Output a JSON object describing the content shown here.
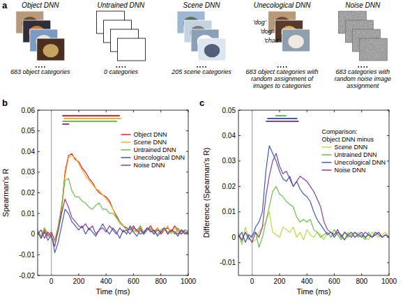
{
  "diagram": {
    "label": "a",
    "columns": [
      {
        "title": "Object DNN",
        "caption": "683 object categories"
      },
      {
        "title": "Untrained DNN",
        "caption": "0 categories"
      },
      {
        "title": "Scene DNN",
        "caption": "205 scene categories"
      },
      {
        "title": "Unecological DNN",
        "caption": "683 object categories with random assignment of images to categories",
        "image_labels": [
          "'dog'",
          "'dog'",
          "'chair'"
        ]
      },
      {
        "title": "Noise DNN",
        "caption": "683 categories with random noise image assignment"
      }
    ]
  },
  "chart_data": [
    {
      "type": "line",
      "title": "b",
      "xlabel": "Time (ms)",
      "ylabel": "Spearman's R",
      "x": [
        -100,
        -75,
        -50,
        -25,
        0,
        25,
        50,
        75,
        100,
        125,
        150,
        175,
        200,
        225,
        250,
        275,
        300,
        325,
        350,
        375,
        400,
        425,
        450,
        475,
        500,
        525,
        550,
        575,
        600,
        625,
        650,
        675,
        700,
        725,
        750,
        775,
        800,
        825,
        850,
        875,
        900,
        925,
        950,
        975,
        1000
      ],
      "xlim": [
        -100,
        1000
      ],
      "xticks": [
        0,
        200,
        400,
        600,
        800,
        1000
      ],
      "ylim": [
        -0.02,
        0.06
      ],
      "yticks": [
        -0.02,
        -0.01,
        0,
        0.01,
        0.02,
        0.03,
        0.04,
        0.05,
        0.06
      ],
      "vline": 0,
      "legend": "upper right",
      "series": [
        {
          "name": "Object DNN",
          "color": "#e41f26",
          "significant": [
            80,
            500
          ],
          "values": [
            0.001,
            -0.002,
            0.002,
            -0.001,
            0.001,
            -0.003,
            0.002,
            0.012,
            0.03,
            0.038,
            0.039,
            0.036,
            0.035,
            0.032,
            0.03,
            0.027,
            0.025,
            0.022,
            0.02,
            0.019,
            0.018,
            0.016,
            0.012,
            0.009,
            0.006,
            0.004,
            0.003,
            0.002,
            0.004,
            0.001,
            0.003,
            0.0,
            0.002,
            0.004,
            0.001,
            0.003,
            0.0,
            0.002,
            0.003,
            0.001,
            0.004,
            0.002,
            0.0,
            0.002,
            0.001
          ]
        },
        {
          "name": "Scene DNN",
          "color": "#f0b323",
          "significant": [
            90,
            510
          ],
          "values": [
            0.0,
            -0.001,
            0.003,
            0.0,
            -0.002,
            -0.004,
            0.001,
            0.01,
            0.028,
            0.037,
            0.038,
            0.037,
            0.034,
            0.031,
            0.028,
            0.026,
            0.024,
            0.022,
            0.021,
            0.019,
            0.017,
            0.015,
            0.012,
            0.008,
            0.005,
            0.004,
            0.002,
            0.003,
            0.002,
            0.001,
            0.004,
            0.001,
            0.003,
            0.002,
            0.0,
            0.003,
            0.001,
            0.002,
            0.004,
            0.0,
            0.003,
            0.001,
            0.002,
            0.0,
            0.002
          ]
        },
        {
          "name": "Untrained DNN",
          "color": "#6abf4b",
          "significant": [
            80,
            480
          ],
          "values": [
            0.002,
            -0.001,
            0.003,
            0.0,
            -0.002,
            -0.003,
            0.004,
            0.014,
            0.026,
            0.027,
            0.021,
            0.018,
            0.018,
            0.016,
            0.015,
            0.013,
            0.012,
            0.014,
            0.015,
            0.012,
            0.012,
            0.01,
            0.01,
            0.008,
            0.006,
            0.004,
            0.002,
            0.003,
            0.001,
            0.002,
            0.004,
            0.0,
            0.002,
            0.003,
            0.001,
            0.0,
            0.002,
            0.003,
            0.001,
            0.002,
            0.0,
            0.003,
            0.001,
            0.002,
            0.001
          ]
        },
        {
          "name": "Unecological DNN",
          "color": "#3d5ab8",
          "values": [
            0.001,
            -0.002,
            0.001,
            -0.003,
            0.0,
            -0.009,
            -0.004,
            0.004,
            0.012,
            0.01,
            0.006,
            0.004,
            0.002,
            0.004,
            0.0,
            0.003,
            0.001,
            -0.001,
            0.002,
            0.005,
            0.002,
            0.0,
            0.003,
            0.001,
            -0.002,
            0.002,
            0.0,
            0.004,
            0.001,
            -0.001,
            0.002,
            0.0,
            0.003,
            0.001,
            0.002,
            -0.001,
            0.001,
            0.003,
            0.0,
            0.002,
            0.001,
            -0.001,
            0.002,
            0.0,
            0.001
          ]
        },
        {
          "name": "Noise DNN",
          "color": "#8a3f99",
          "significant": [
            80,
            130
          ],
          "values": [
            0.0,
            0.002,
            -0.002,
            0.001,
            -0.001,
            -0.006,
            0.002,
            0.01,
            0.017,
            0.013,
            0.008,
            0.006,
            0.004,
            0.003,
            0.005,
            0.002,
            0.004,
            0.0,
            0.002,
            0.003,
            0.001,
            0.004,
            0.002,
            0.0,
            0.003,
            0.001,
            0.002,
            0.0,
            0.003,
            0.002,
            0.0,
            0.001,
            0.003,
            0.002,
            0.0,
            0.002,
            0.001,
            0.003,
            0.0,
            0.002,
            0.001,
            0.0,
            0.002,
            0.001,
            0.0
          ]
        }
      ]
    },
    {
      "type": "line",
      "title": "c",
      "xlabel": "Time (ms)",
      "ylabel": "Difference (Spearman's R)",
      "annotations": [
        "Comparison:",
        "Object DNN minus"
      ],
      "x": [
        -100,
        -75,
        -50,
        -25,
        0,
        25,
        50,
        75,
        100,
        125,
        150,
        175,
        200,
        225,
        250,
        275,
        300,
        325,
        350,
        375,
        400,
        425,
        450,
        475,
        500,
        525,
        550,
        575,
        600,
        625,
        650,
        675,
        700,
        725,
        750,
        775,
        800,
        825,
        850,
        875,
        900,
        925,
        950,
        975,
        1000
      ],
      "xlim": [
        -100,
        1000
      ],
      "xticks": [
        0,
        200,
        400,
        600,
        800,
        1000
      ],
      "ylim": [
        -0.015,
        0.05
      ],
      "yticks": [
        -0.01,
        0,
        0.01,
        0.02,
        0.03,
        0.04,
        0.05
      ],
      "vline": 0,
      "legend": "upper right",
      "series": [
        {
          "name": "Scene DNN",
          "color": "#c3d545",
          "values": [
            0.002,
            -0.003,
            0.004,
            0.0,
            -0.002,
            -0.001,
            0.002,
            0.004,
            0.006,
            0.01,
            0.002,
            0.001,
            0.0,
            0.004,
            0.003,
            0.002,
            0.004,
            0.0,
            0.002,
            -0.001,
            0.003,
            0.001,
            0.0,
            0.002,
            0.001,
            -0.001,
            0.002,
            0.0,
            0.001,
            0.002,
            0.0,
            -0.001,
            0.002,
            0.001,
            0.0,
            0.002,
            0.001,
            0.0,
            -0.001,
            0.002,
            0.001,
            0.0,
            0.001,
            0.002,
            0.0
          ]
        },
        {
          "name": "Untrained DNN",
          "color": "#6abf4b",
          "significant": [
            170,
            250
          ],
          "values": [
            0.001,
            -0.002,
            0.002,
            -0.001,
            0.001,
            0.002,
            -0.004,
            0.0,
            0.006,
            0.012,
            0.018,
            0.02,
            0.017,
            0.016,
            0.014,
            0.013,
            0.012,
            0.008,
            0.006,
            0.007,
            0.006,
            0.007,
            0.003,
            0.002,
            0.0,
            0.001,
            0.002,
            0.0,
            0.003,
            0.001,
            -0.001,
            0.002,
            0.0,
            0.001,
            0.002,
            0.0,
            0.001,
            -0.001,
            0.002,
            0.0,
            0.001,
            0.002,
            0.0,
            0.001,
            0.0
          ]
        },
        {
          "name": "Unecological DNN",
          "color": "#3d5ab8",
          "significant": [
            110,
            330
          ],
          "values": [
            0.0,
            0.002,
            -0.002,
            0.001,
            0.0,
            0.004,
            0.006,
            0.01,
            0.026,
            0.036,
            0.033,
            0.03,
            0.026,
            0.023,
            0.022,
            0.024,
            0.02,
            0.022,
            0.019,
            0.017,
            0.016,
            0.014,
            0.01,
            0.007,
            0.005,
            0.003,
            0.001,
            0.002,
            0.0,
            0.002,
            0.001,
            -0.001,
            0.001,
            0.002,
            0.0,
            0.001,
            0.002,
            0.0,
            0.001,
            0.0,
            0.002,
            0.001,
            0.0,
            0.001,
            0.0
          ]
        },
        {
          "name": "Noise DNN",
          "color": "#8a3f99",
          "significant": [
            100,
            340
          ],
          "values": [
            0.001,
            -0.001,
            0.002,
            0.0,
            -0.002,
            0.002,
            0.0,
            0.004,
            0.016,
            0.024,
            0.03,
            0.033,
            0.028,
            0.025,
            0.026,
            0.023,
            0.02,
            0.022,
            0.024,
            0.023,
            0.022,
            0.02,
            0.018,
            0.015,
            0.012,
            0.006,
            0.003,
            0.002,
            0.001,
            0.003,
            0.0,
            0.002,
            0.001,
            0.0,
            0.002,
            0.001,
            0.0,
            0.002,
            0.001,
            0.0,
            0.001,
            0.002,
            0.0,
            0.001,
            0.0
          ]
        }
      ]
    }
  ]
}
